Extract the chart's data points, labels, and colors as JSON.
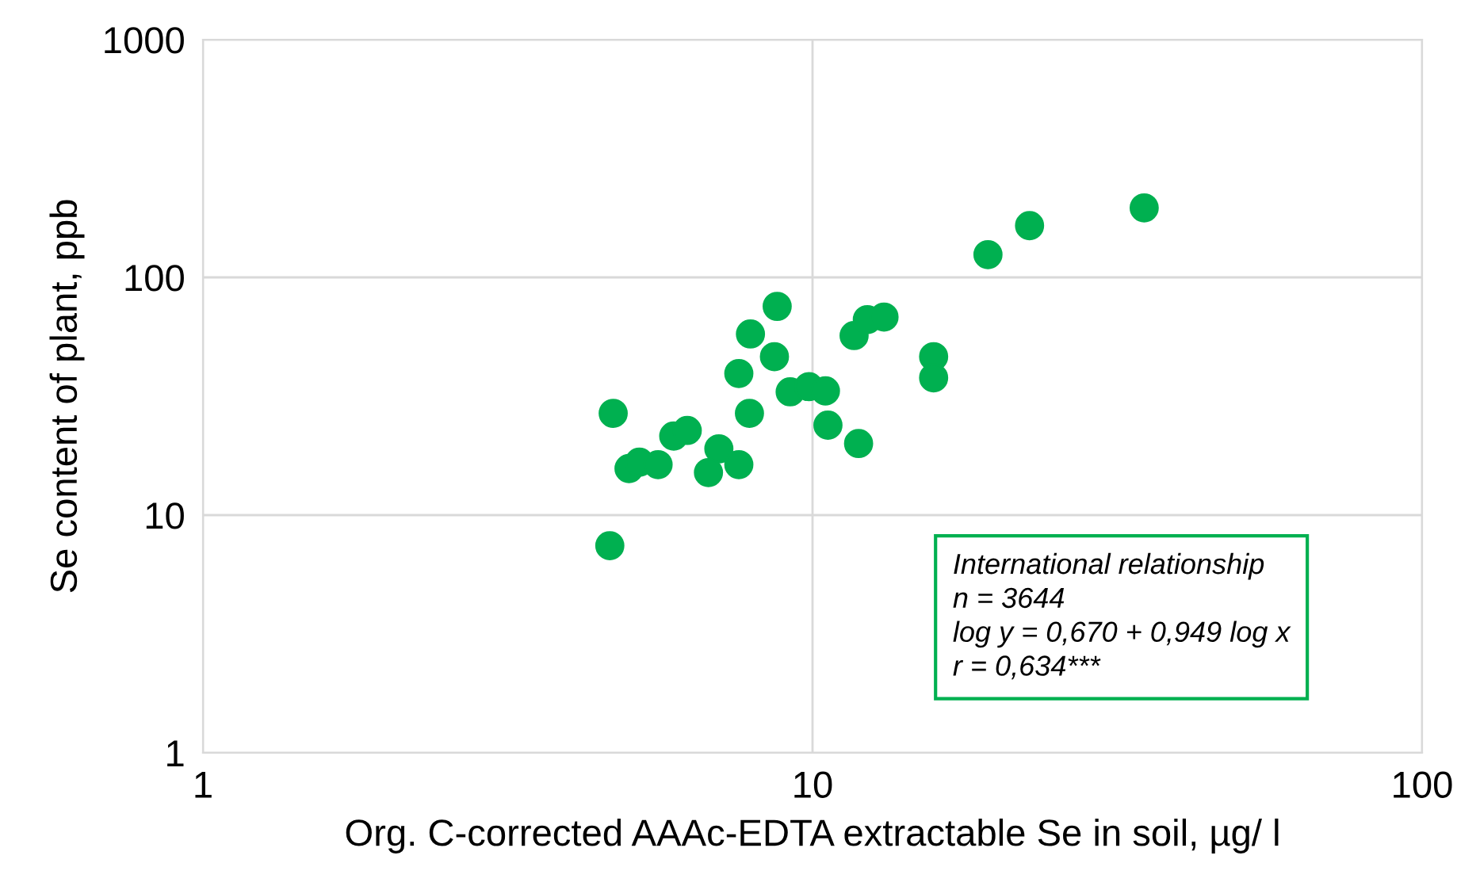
{
  "chart_data": {
    "type": "scatter",
    "xlabel": "Org. C-corrected AAAc-EDTA extractable Se in soil, µg/ l",
    "ylabel": "Se content of plant, ppb",
    "log": "xy",
    "xlim": [
      1,
      100
    ],
    "ylim": [
      1,
      1000
    ],
    "xticks": [
      1,
      10,
      100
    ],
    "yticks": [
      1,
      10,
      100,
      1000
    ],
    "grid": true,
    "marker": "circle",
    "legend": false,
    "annotations": [
      "International relationship\nn = 3644\nlog y = 0,670 + 0,949 log x\nr = 0,634***"
    ],
    "series": [
      {
        "color": "#00b050",
        "x": [
          4.71,
          8.75,
          7.91,
          8.66,
          7.57,
          9.19,
          9.86,
          10.5,
          7.88,
          10.6,
          11.9,
          5.92,
          6.23,
          7.02,
          5.0,
          5.2,
          5.58,
          6.75,
          7.57,
          11.7,
          12.3,
          13.1,
          15.8,
          15.8,
          4.65,
          19.4,
          22.7,
          35.0
        ],
        "values": [
          26.8,
          75.5,
          57.8,
          46.4,
          39.4,
          33.0,
          34.7,
          33.3,
          26.8,
          23.9,
          20.0,
          21.5,
          22.7,
          19.0,
          15.7,
          16.7,
          16.3,
          15.1,
          16.3,
          56.9,
          66.4,
          68.1,
          46.4,
          37.8,
          7.44,
          124.6,
          165,
          196
        ]
      }
    ]
  }
}
